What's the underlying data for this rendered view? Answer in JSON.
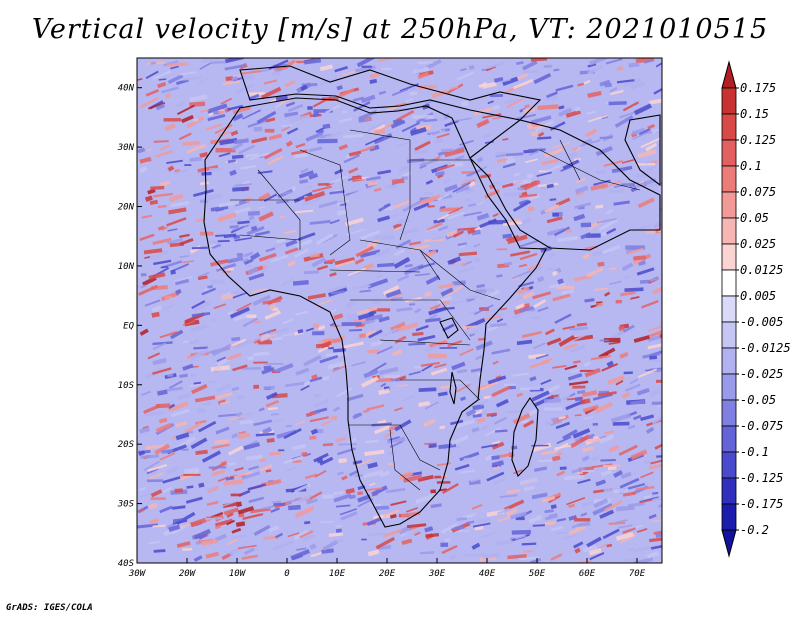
{
  "title": "Vertical velocity [m/s] at 250hPa, VT: 2021010515",
  "credit": "GrADS: IGES/COLA",
  "map": {
    "region": "Africa",
    "variable": "Vertical velocity",
    "units": "m/s",
    "level": "250hPa",
    "valid_time": "2021010515",
    "lon_ticks": [
      "30W",
      "20W",
      "10W",
      "0",
      "10E",
      "20E",
      "30E",
      "40E",
      "50E",
      "60E",
      "70E"
    ],
    "lat_ticks": [
      "40N",
      "30N",
      "20N",
      "10N",
      "EQ",
      "10S",
      "20S",
      "30S",
      "40S"
    ],
    "lon_range": [
      -30,
      75
    ],
    "lat_range": [
      -40,
      45
    ]
  },
  "legend": {
    "levels": [
      "0.175",
      "0.15",
      "0.125",
      "0.1",
      "0.075",
      "0.05",
      "0.025",
      "0.0125",
      "0.005",
      "-0.005",
      "-0.0125",
      "-0.025",
      "-0.05",
      "-0.075",
      "-0.1",
      "-0.125",
      "-0.175",
      "-0.2"
    ],
    "colors": [
      "#b21e24",
      "#c83232",
      "#d84a48",
      "#e46060",
      "#ec7c7a",
      "#f29a98",
      "#f6b6b4",
      "#fad4d2",
      "#ffffff",
      "#dadaf8",
      "#c6c6f4",
      "#b2b2f0",
      "#9a9aea",
      "#8080e2",
      "#6464d8",
      "#4a4acc",
      "#3030bc",
      "#1c1cac",
      "#1212a0"
    ]
  }
}
